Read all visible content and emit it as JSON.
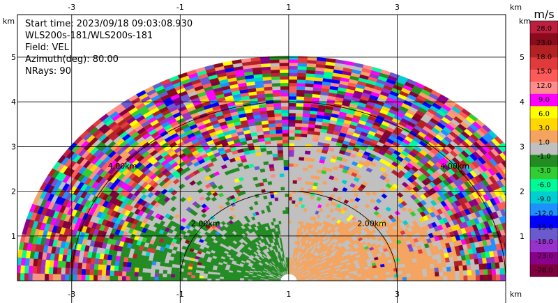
{
  "chart_data": {
    "type": "heatmap",
    "subtype": "radar PPI (plan position indicator) sector sweep, Doppler velocity",
    "info_lines": [
      "Start time: 2023/09/18 09:03:08.930",
      "WLS200s-181/WLS200s-181",
      "Field: VEL",
      "Azimuth(deg): 80.00",
      "NRays: 90"
    ],
    "field": "VEL",
    "instrument": "WLS200s-181",
    "start_time": "2023/09/18 09:03:08.930",
    "azimuth_deg": 80.0,
    "n_rays": 90,
    "x_ticks": [
      -3,
      -1,
      1,
      3
    ],
    "y_ticks": [
      1,
      2,
      3,
      4,
      5
    ],
    "x_tick_labels": [
      "-3",
      "-1",
      "1",
      "3"
    ],
    "y_tick_labels": [
      "1",
      "2",
      "3",
      "4",
      "5"
    ],
    "axis_unit_label": "km",
    "xlim": [
      -4.0,
      5.0
    ],
    "ylim": [
      0,
      5.95
    ],
    "grid": true,
    "range_rings": [
      {
        "range_km": 2.0,
        "label": "2.00km"
      },
      {
        "range_km": 4.0,
        "label": "4.00km"
      }
    ],
    "sweep_max_range_km": 5.0,
    "sweep_center_x_km": 1.0,
    "colorbar": {
      "title": "m/s",
      "tick_labels": [
        "28.0",
        "23.0",
        "18.0",
        "15.0",
        "12.0",
        "9.0",
        "6.0",
        "3.0",
        "1.0",
        "-1.0",
        "-3.0",
        "-6.0",
        "-9.0",
        "-12.0",
        "-15.0",
        "-18.0",
        "-23.0",
        "-28.0"
      ],
      "colors": [
        "#bf1f3f",
        "#8b0a1c",
        "#b22222",
        "#e03a3a",
        "#ff5a5a",
        "#ff8c8c",
        "#ff00ff",
        "#ffff00",
        "#ffd700",
        "#f4a460",
        "#c0c0c0",
        "#228b22",
        "#32cd32",
        "#00fa9a",
        "#00ced1",
        "#1e90ff",
        "#0000ff",
        "#6a5acd",
        "#9932cc",
        "#8b008b",
        "#800040"
      ]
    }
  }
}
